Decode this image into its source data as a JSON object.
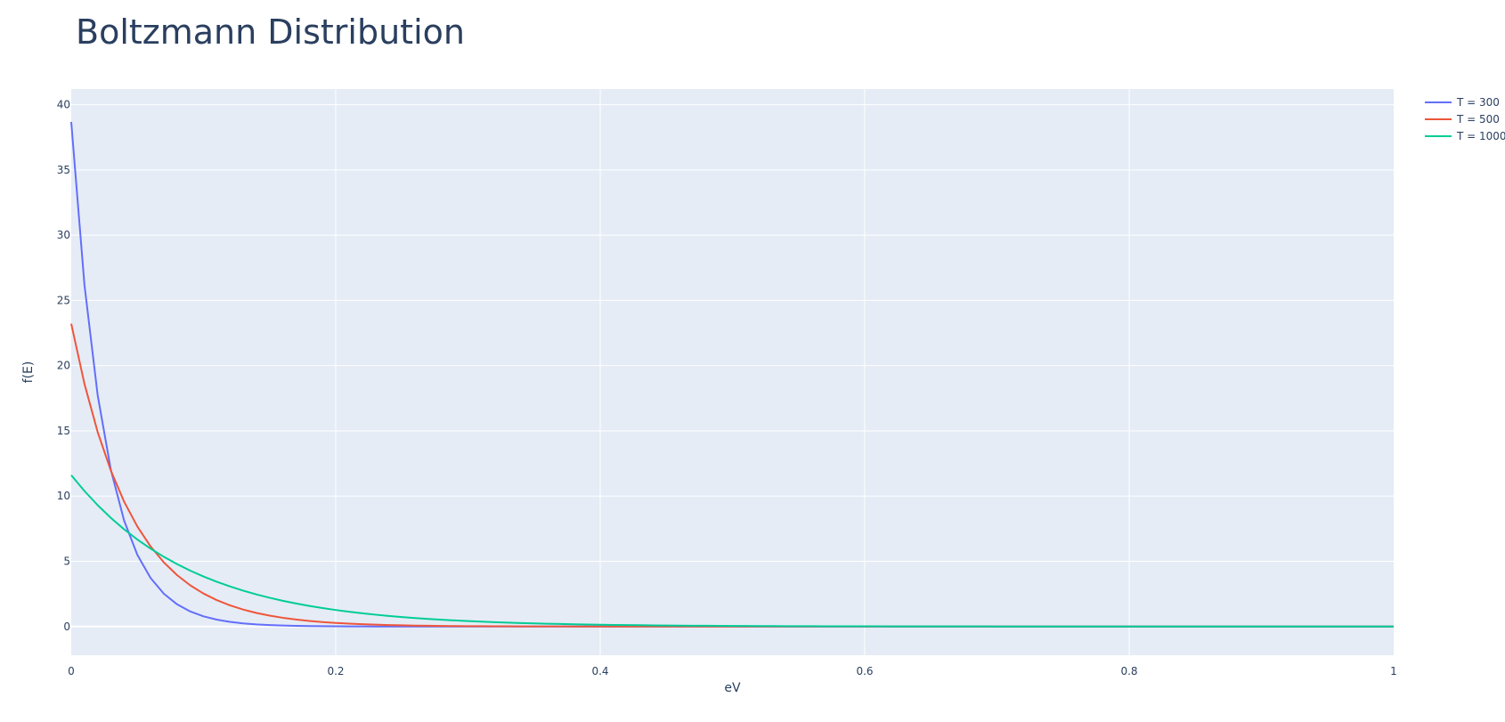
{
  "chart_data": {
    "type": "line",
    "title": "Boltzmann Distribution",
    "xlabel": "eV",
    "ylabel": "f(E)",
    "xlim": [
      0,
      1
    ],
    "ylim": [
      -2.2,
      41.2
    ],
    "x_ticks": [
      0,
      0.2,
      0.4,
      0.6,
      0.8,
      1
    ],
    "x_tick_labels": [
      "0",
      "0.2",
      "0.4",
      "0.6",
      "0.8",
      "1"
    ],
    "y_ticks": [
      0,
      5,
      10,
      15,
      20,
      25,
      30,
      35,
      40
    ],
    "y_tick_labels": [
      "0",
      "5",
      "10",
      "15",
      "20",
      "25",
      "30",
      "35",
      "40"
    ],
    "grid": true,
    "legend_position": "top-right, outside plot",
    "plot_background": "#e5ecf6",
    "grid_color": "#ffffff",
    "x": [
      0,
      0.01,
      0.02,
      0.03,
      0.04,
      0.05,
      0.06,
      0.07,
      0.08,
      0.09,
      0.1,
      0.11,
      0.12,
      0.13,
      0.14,
      0.15,
      0.16,
      0.17,
      0.18,
      0.19,
      0.2,
      0.21,
      0.22,
      0.23,
      0.24,
      0.25,
      0.26,
      0.27,
      0.28,
      0.29,
      0.3,
      0.31,
      0.32,
      0.33,
      0.34,
      0.35,
      0.36,
      0.37,
      0.38,
      0.39,
      0.4,
      0.41,
      0.42,
      0.43,
      0.44,
      0.45,
      0.46,
      0.47,
      0.48,
      0.49,
      0.5,
      0.51,
      0.52,
      0.53,
      0.54,
      0.55,
      0.56,
      0.57,
      0.58,
      0.59,
      0.6,
      0.61,
      0.62,
      0.63,
      0.64,
      0.65,
      0.66,
      0.67,
      0.68,
      0.69,
      0.7,
      0.71,
      0.72,
      0.73,
      0.74,
      0.75,
      0.76,
      0.77,
      0.78,
      0.79,
      0.8,
      0.81,
      0.82,
      0.83,
      0.84,
      0.85,
      0.86,
      0.87,
      0.88,
      0.89,
      0.9,
      0.91,
      0.92,
      0.93,
      0.94,
      0.95,
      0.96,
      0.97,
      0.98,
      0.99,
      1
    ],
    "series": [
      {
        "name": "T = 300",
        "color": "#636efa",
        "values": [
          38.68,
          26.18,
          17.72,
          11.99,
          8.116,
          5.493,
          3.718,
          2.516,
          1.703,
          1.153,
          0.7801,
          0.528,
          0.3574,
          0.2419,
          0.1637,
          0.1108,
          0.075,
          0.05075,
          0.03435,
          0.02325,
          0.01573,
          0.01065,
          0.007208,
          0.004878,
          0.003302,
          0.002235,
          0.001512,
          0.001024,
          0.000693,
          0.000469,
          0.0003174,
          0.0002148,
          0.0001454,
          9.84e-05,
          6.66e-05,
          4.51e-05,
          3.05e-05,
          2.06e-05,
          1.4e-05,
          9.4e-06,
          6.4e-06,
          4.3e-06,
          2.9e-06,
          2e-06,
          1.3e-06,
          9e-07,
          6e-07,
          4e-07,
          3e-07,
          2e-07,
          1e-07,
          1e-07,
          1e-07,
          0,
          0,
          0,
          0,
          0,
          0,
          0,
          0,
          0,
          0,
          0,
          0,
          0,
          0,
          0,
          0,
          0,
          0,
          0,
          0,
          0,
          0,
          0,
          0,
          0,
          0,
          0,
          0,
          0,
          0,
          0,
          0,
          0,
          0,
          0,
          0,
          0,
          0,
          0,
          0,
          0,
          0,
          0,
          0,
          0,
          0,
          0,
          0
        ]
      },
      {
        "name": "T = 500",
        "color": "#ef553b",
        "values": [
          23.21,
          18.6,
          14.9,
          11.94,
          9.567,
          7.665,
          6.141,
          4.92,
          3.942,
          3.158,
          2.53,
          2.027,
          1.624,
          1.301,
          1.043,
          0.8353,
          0.6692,
          0.5362,
          0.4296,
          0.3442,
          0.2757,
          0.2209,
          0.177,
          0.1418,
          0.1136,
          0.09103,
          0.07293,
          0.05843,
          0.04682,
          0.03751,
          0.03005,
          0.02408,
          0.01929,
          0.01546,
          0.01238,
          0.009921,
          0.007949,
          0.006369,
          0.005102,
          0.004088,
          0.003275,
          0.002624,
          0.002102,
          0.001685,
          0.00135,
          0.001081,
          0.0008664,
          0.0006941,
          0.0005561,
          0.0004456,
          0.000357,
          0.000286,
          0.0002292,
          0.0001836,
          0.0001471,
          0.0001179,
          9.44e-05,
          7.57e-05,
          6.06e-05,
          4.86e-05,
          3.89e-05,
          3.12e-05,
          2.5e-05,
          2e-05,
          1.6e-05,
          1.28e-05,
          1.03e-05,
          8.2e-06,
          6.6e-06,
          5.3e-06,
          4.2e-06,
          3.4e-06,
          2.7e-06,
          2.2e-06,
          1.7e-06,
          1.4e-06,
          1.1e-06,
          9e-07,
          7e-07,
          6e-07,
          5e-07,
          4e-07,
          3e-07,
          2e-07,
          2e-07,
          2e-07,
          1e-07,
          1e-07,
          1e-07,
          1e-07,
          0,
          0,
          0,
          0,
          0,
          0,
          0,
          0,
          0,
          0,
          0
        ]
      },
      {
        "name": "T = 1000",
        "color": "#00cc96",
        "values": [
          11.6,
          10.39,
          9.298,
          8.324,
          7.451,
          6.67,
          5.971,
          5.345,
          4.785,
          4.283,
          3.834,
          3.432,
          3.073,
          2.751,
          2.462,
          2.204,
          1.973,
          1.766,
          1.581,
          1.415,
          1.267,
          1.134,
          1.015,
          0.9088,
          0.8135,
          0.7283,
          0.6519,
          0.5836,
          0.5224,
          0.4677,
          0.4187,
          0.3748,
          0.3355,
          0.3003,
          0.2689,
          0.2407,
          0.2154,
          0.1929,
          0.1726,
          0.1546,
          0.1383,
          0.1238,
          0.1109,
          0.09924,
          0.08884,
          0.07953,
          0.07119,
          0.06373,
          0.05705,
          0.05107,
          0.04572,
          0.04093,
          0.03664,
          0.0328,
          0.02936,
          0.02628,
          0.02353,
          0.02106,
          0.01885,
          0.01688,
          0.01511,
          0.01352,
          0.01211,
          0.01084,
          0.009701,
          0.008684,
          0.007774,
          0.006959,
          0.00623,
          0.005577,
          0.004992,
          0.004469,
          0.004001,
          0.003581,
          0.003206,
          0.00287,
          0.002569,
          0.0023,
          0.002059,
          0.001843,
          0.00165,
          0.001477,
          0.001322,
          0.001184,
          0.00106,
          0.000948,
          0.000849,
          0.00076,
          0.00068,
          0.000609,
          0.000545,
          0.000488,
          0.000437,
          0.000391,
          0.00035,
          0.000313,
          0.00028,
          0.000251,
          0.000225,
          0.000201,
          0.00018
        ]
      }
    ]
  }
}
